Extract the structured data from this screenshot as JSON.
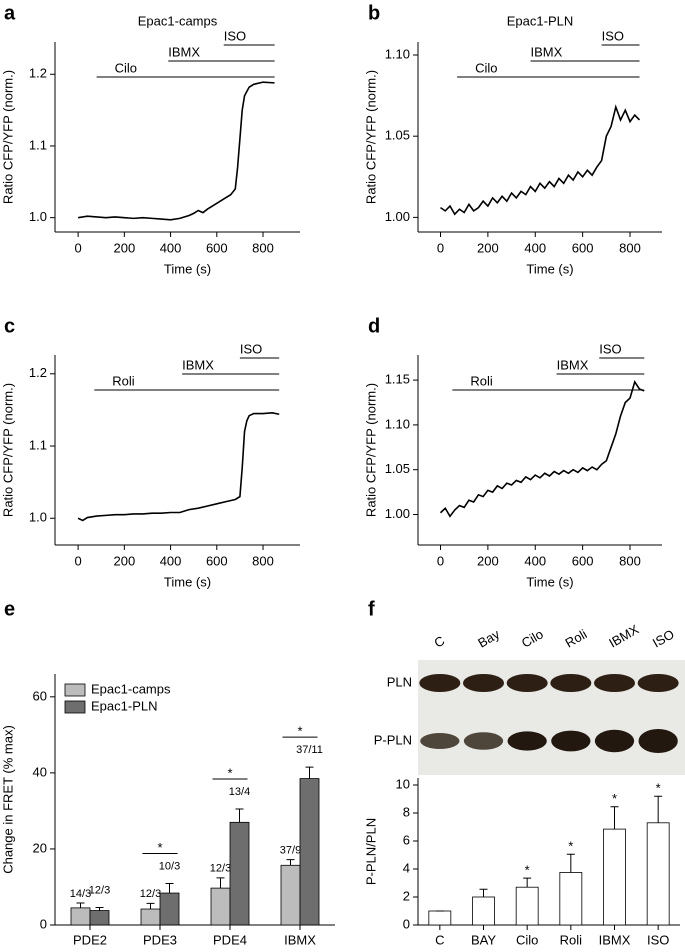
{
  "chart_data": [
    {
      "type": "line",
      "panel": "a",
      "title": "Epac1-camps",
      "xlabel": "Time (s)",
      "ylabel": "Ratio CFP/YFP (norm.)",
      "color": "#000000",
      "x": [
        0,
        40,
        80,
        120,
        160,
        200,
        240,
        280,
        320,
        360,
        400,
        440,
        480,
        500,
        520,
        540,
        560,
        600,
        640,
        660,
        680,
        690,
        700,
        710,
        720,
        740,
        760,
        800,
        850
      ],
      "values": [
        1.0,
        1.002,
        1.001,
        1.0,
        1.001,
        1.0,
        0.999,
        1.0,
        0.999,
        0.998,
        0.997,
        0.999,
        1.003,
        1.006,
        1.01,
        1.007,
        1.012,
        1.02,
        1.028,
        1.032,
        1.04,
        1.07,
        1.11,
        1.15,
        1.17,
        1.182,
        1.186,
        1.189,
        1.188
      ],
      "xlim": [
        -100,
        960
      ],
      "xticks": [
        0,
        200,
        400,
        600,
        800
      ],
      "ylim": [
        0.98,
        1.245
      ],
      "yticks": [
        {
          "value": 1,
          "label": "1.0"
        },
        1.1,
        1.2
      ],
      "annotations": [
        {
          "text": "Cilo",
          "x": [
            80,
            850
          ]
        },
        {
          "text": "IBMX",
          "x": [
            390,
            850
          ]
        },
        {
          "text": "ISO",
          "x": [
            630,
            850
          ]
        }
      ]
    },
    {
      "type": "line",
      "panel": "b",
      "title": "Epac1-PLN",
      "xlabel": "Time (s)",
      "ylabel": "Ratio CFP/YFP (norm.)",
      "color": "#000000",
      "x": [
        0,
        20,
        40,
        60,
        80,
        100,
        120,
        140,
        160,
        180,
        200,
        220,
        240,
        260,
        280,
        300,
        320,
        340,
        360,
        380,
        400,
        420,
        440,
        460,
        480,
        500,
        520,
        540,
        560,
        580,
        600,
        620,
        640,
        660,
        680,
        700,
        720,
        740,
        760,
        780,
        800,
        820,
        840
      ],
      "values": [
        1.006,
        1.004,
        1.007,
        1.002,
        1.005,
        1.003,
        1.008,
        1.004,
        1.006,
        1.01,
        1.007,
        1.012,
        1.009,
        1.013,
        1.01,
        1.015,
        1.012,
        1.016,
        1.014,
        1.019,
        1.016,
        1.021,
        1.018,
        1.022,
        1.019,
        1.024,
        1.021,
        1.026,
        1.023,
        1.028,
        1.025,
        1.029,
        1.026,
        1.031,
        1.035,
        1.05,
        1.056,
        1.068,
        1.06,
        1.066,
        1.059,
        1.063,
        1.06
      ],
      "xlim": [
        -95,
        935
      ],
      "xticks": [
        0,
        200,
        400,
        600,
        800
      ],
      "ylim": [
        0.991,
        1.108
      ],
      "yticks": [
        {
          "value": 1,
          "label": "1.00"
        },
        1.05,
        {
          "value": 1.1,
          "label": "1.10"
        }
      ],
      "annotations": [
        {
          "text": "Cilo",
          "x": [
            70,
            840
          ]
        },
        {
          "text": "IBMX",
          "x": [
            380,
            840
          ]
        },
        {
          "text": "ISO",
          "x": [
            680,
            840
          ]
        }
      ]
    },
    {
      "type": "line",
      "panel": "c",
      "xlabel": "Time (s)",
      "ylabel": "Ratio CFP/YFP (norm.)",
      "color": "#000000",
      "x": [
        0,
        20,
        40,
        80,
        120,
        160,
        200,
        240,
        280,
        320,
        360,
        400,
        440,
        480,
        520,
        560,
        600,
        640,
        680,
        700,
        710,
        720,
        730,
        740,
        760,
        800,
        840,
        870
      ],
      "values": [
        1.0,
        0.997,
        1.001,
        1.003,
        1.004,
        1.005,
        1.005,
        1.006,
        1.006,
        1.007,
        1.007,
        1.008,
        1.008,
        1.012,
        1.014,
        1.017,
        1.02,
        1.023,
        1.026,
        1.03,
        1.07,
        1.12,
        1.135,
        1.142,
        1.145,
        1.145,
        1.146,
        1.144
      ],
      "xlim": [
        -100,
        960
      ],
      "xticks": [
        0,
        200,
        400,
        600,
        800
      ],
      "ylim": [
        0.963,
        1.226
      ],
      "yticks": [
        {
          "value": 1,
          "label": "1.0"
        },
        1.1,
        1.2
      ],
      "annotations": [
        {
          "text": "Roli",
          "x": [
            70,
            870
          ]
        },
        {
          "text": "IBMX",
          "x": [
            450,
            870
          ]
        },
        {
          "text": "ISO",
          "x": [
            700,
            870
          ]
        }
      ]
    },
    {
      "type": "line",
      "panel": "d",
      "xlabel": "Time (s)",
      "ylabel": "Ratio CFP/YFP (norm.)",
      "color": "#000000",
      "x": [
        0,
        20,
        40,
        60,
        80,
        100,
        120,
        140,
        160,
        180,
        200,
        220,
        240,
        260,
        280,
        300,
        320,
        340,
        360,
        380,
        400,
        420,
        440,
        460,
        480,
        500,
        520,
        540,
        560,
        580,
        600,
        620,
        640,
        660,
        680,
        700,
        720,
        740,
        760,
        780,
        800,
        820,
        840,
        860
      ],
      "values": [
        1.002,
        1.007,
        0.998,
        1.005,
        1.01,
        1.008,
        1.016,
        1.014,
        1.022,
        1.02,
        1.027,
        1.025,
        1.032,
        1.029,
        1.035,
        1.033,
        1.038,
        1.036,
        1.042,
        1.039,
        1.044,
        1.041,
        1.046,
        1.043,
        1.048,
        1.045,
        1.049,
        1.046,
        1.05,
        1.047,
        1.052,
        1.049,
        1.053,
        1.05,
        1.056,
        1.06,
        1.075,
        1.09,
        1.11,
        1.125,
        1.13,
        1.148,
        1.14,
        1.138
      ],
      "xlim": [
        -95,
        935
      ],
      "xticks": [
        0,
        200,
        400,
        600,
        800
      ],
      "ylim": [
        0.966,
        1.178
      ],
      "yticks": [
        {
          "value": 1,
          "label": "1.00"
        },
        1.05,
        {
          "value": 1.1,
          "label": "1.10"
        },
        1.15
      ],
      "annotations": [
        {
          "text": "Roli",
          "x": [
            50,
            860
          ]
        },
        {
          "text": "IBMX",
          "x": [
            490,
            860
          ]
        },
        {
          "text": "ISO",
          "x": [
            670,
            860
          ]
        }
      ]
    },
    {
      "type": "bar",
      "panel": "e",
      "ylabel": "Change in FRET (% max)",
      "legend": "upper left",
      "categories": [
        "PDE2",
        "PDE3",
        "PDE4",
        "IBMX"
      ],
      "series": [
        {
          "name": "Epac1-camps",
          "color": "#bcbcbc",
          "values": [
            4.5,
            4.2,
            9.7,
            15.7
          ],
          "errors": [
            1.3,
            1.5,
            2.7,
            1.5
          ],
          "n_labels": [
            "14/3",
            "12/3",
            "12/3",
            "37/9"
          ]
        },
        {
          "name": "Epac1-PLN",
          "color": "#6e6e6e",
          "values": [
            3.8,
            8.4,
            27,
            38.5
          ],
          "errors": [
            0.8,
            2.5,
            3.5,
            3
          ],
          "n_labels": [
            "12/3",
            "10/3",
            "13/4",
            "37/11"
          ]
        }
      ],
      "significance": [
        null,
        "*",
        "*",
        "*"
      ],
      "ylim": [
        0,
        66
      ],
      "yticks": [
        0,
        20,
        40,
        60
      ]
    },
    {
      "type": "bar",
      "panel": "f",
      "ylabel": "P-PLN/PLN",
      "blot": {
        "lanes": [
          "C",
          "Bay",
          "Cilo",
          "Roli",
          "IBMX",
          "ISO"
        ],
        "rows": [
          "PLN",
          "P-PLN"
        ]
      },
      "categories": [
        "C",
        "BAY",
        "Cilo",
        "Roli",
        "IBMX",
        "ISO"
      ],
      "series": [
        {
          "color": "#ffffff",
          "values": [
            1,
            2,
            2.7,
            3.75,
            6.85,
            7.3
          ],
          "errors": [
            0,
            0.55,
            0.65,
            1.3,
            1.6,
            1.9
          ]
        }
      ],
      "significance": [
        null,
        null,
        "*",
        "*",
        "*",
        "*"
      ],
      "ylim": [
        0,
        10.5
      ],
      "yticks": [
        0,
        2,
        4,
        6,
        8,
        10
      ]
    }
  ]
}
